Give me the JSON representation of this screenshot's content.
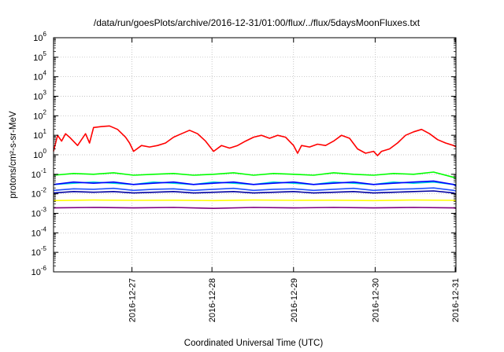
{
  "chart_data": {
    "type": "line",
    "title": "/data/run/goesPlots/archive/2016-12-31/01:00/flux/../flux/5daysMoonFluxes.txt",
    "xlabel": "Coordinated Universal Time (UTC)",
    "ylabel": "protons/cm²-s-sr-MeV",
    "y_scale": "log",
    "ylim": [
      1e-06,
      1000000.0
    ],
    "xlim_days": [
      0.0,
      5.03
    ],
    "grid": true,
    "legend": "none",
    "x_ticks": [
      {
        "day": 0.98,
        "label": "2016-12-27"
      },
      {
        "day": 1.98,
        "label": "2016-12-28"
      },
      {
        "day": 3.0,
        "label": "2016-12-29"
      },
      {
        "day": 4.02,
        "label": "2016-12-30"
      },
      {
        "day": 5.02,
        "label": "2016-12-31"
      }
    ],
    "y_ticks": [
      {
        "value": 1000000.0,
        "base": "10",
        "exp": "6"
      },
      {
        "value": 100000.0,
        "base": "10",
        "exp": "5"
      },
      {
        "value": 10000.0,
        "base": "10",
        "exp": "4"
      },
      {
        "value": 1000.0,
        "base": "10",
        "exp": "3"
      },
      {
        "value": 100.0,
        "base": "10",
        "exp": "2"
      },
      {
        "value": 10.0,
        "base": "10",
        "exp": "1"
      },
      {
        "value": 1.0,
        "base": "10",
        "exp": "0"
      },
      {
        "value": 0.1,
        "base": "10",
        "exp": "-1"
      },
      {
        "value": 0.01,
        "base": "10",
        "exp": "-2"
      },
      {
        "value": 0.001,
        "base": "10",
        "exp": "-3"
      },
      {
        "value": 0.0001,
        "base": "10",
        "exp": "-4"
      },
      {
        "value": 1e-05,
        "base": "10",
        "exp": "-5"
      },
      {
        "value": 1e-06,
        "base": "10",
        "exp": "-6"
      }
    ],
    "series": [
      {
        "color": "#ff0000",
        "x": [
          0.0,
          0.05,
          0.1,
          0.15,
          0.2,
          0.3,
          0.4,
          0.45,
          0.5,
          0.6,
          0.7,
          0.8,
          0.9,
          0.95,
          1.0,
          1.1,
          1.2,
          1.3,
          1.4,
          1.5,
          1.6,
          1.7,
          1.8,
          1.9,
          2.0,
          2.1,
          2.2,
          2.3,
          2.4,
          2.5,
          2.6,
          2.7,
          2.8,
          2.9,
          3.0,
          3.05,
          3.1,
          3.2,
          3.3,
          3.4,
          3.5,
          3.6,
          3.7,
          3.8,
          3.9,
          4.0,
          4.05,
          4.1,
          4.2,
          4.3,
          4.4,
          4.5,
          4.6,
          4.7,
          4.8,
          4.9,
          5.0,
          5.03
        ],
        "y": [
          1.5,
          10,
          5,
          12,
          8,
          3,
          12,
          4,
          25,
          28,
          30,
          20,
          8,
          4,
          1.5,
          3,
          2.5,
          3,
          4,
          8,
          12,
          18,
          12,
          5,
          1.5,
          3,
          2.2,
          3,
          5,
          8,
          10,
          7,
          10,
          8,
          3,
          1.2,
          3,
          2.5,
          3.5,
          3,
          5,
          10,
          7,
          2,
          1.2,
          1.5,
          0.9,
          1.5,
          2,
          4,
          10,
          15,
          20,
          12,
          6,
          4,
          3,
          2.5
        ]
      },
      {
        "color": "#00ff00",
        "x": [
          0.0,
          0.25,
          0.5,
          0.75,
          1.0,
          1.25,
          1.5,
          1.75,
          2.0,
          2.25,
          2.5,
          2.75,
          3.0,
          3.25,
          3.5,
          3.75,
          4.0,
          4.25,
          4.5,
          4.75,
          5.0,
          5.03
        ],
        "y": [
          0.09,
          0.11,
          0.1,
          0.12,
          0.09,
          0.1,
          0.11,
          0.09,
          0.1,
          0.12,
          0.09,
          0.11,
          0.1,
          0.09,
          0.12,
          0.1,
          0.09,
          0.11,
          0.1,
          0.13,
          0.07,
          0.06
        ]
      },
      {
        "color": "#00d8d8",
        "x": [
          0.0,
          0.25,
          0.5,
          0.75,
          1.0,
          1.25,
          1.5,
          1.75,
          2.0,
          2.25,
          2.5,
          2.75,
          3.0,
          3.25,
          3.5,
          3.75,
          4.0,
          4.25,
          4.5,
          4.75,
          5.0,
          5.03
        ],
        "y": [
          0.03,
          0.035,
          0.04,
          0.035,
          0.03,
          0.04,
          0.035,
          0.03,
          0.04,
          0.035,
          0.03,
          0.04,
          0.035,
          0.03,
          0.04,
          0.035,
          0.03,
          0.04,
          0.035,
          0.04,
          0.03,
          0.03
        ]
      },
      {
        "color": "#0000ff",
        "x": [
          0.0,
          0.25,
          0.5,
          0.75,
          1.0,
          1.25,
          1.5,
          1.75,
          2.0,
          2.25,
          2.5,
          2.75,
          3.0,
          3.25,
          3.5,
          3.75,
          4.0,
          4.25,
          4.5,
          4.75,
          5.0,
          5.03
        ],
        "y": [
          0.03,
          0.04,
          0.035,
          0.04,
          0.03,
          0.035,
          0.04,
          0.03,
          0.035,
          0.04,
          0.03,
          0.035,
          0.04,
          0.03,
          0.035,
          0.04,
          0.03,
          0.035,
          0.04,
          0.045,
          0.03,
          0.025
        ]
      },
      {
        "color": "#2050ff",
        "x": [
          0.0,
          0.25,
          0.5,
          0.75,
          1.0,
          1.25,
          1.5,
          1.75,
          2.0,
          2.25,
          2.5,
          2.75,
          3.0,
          3.25,
          3.5,
          3.75,
          4.0,
          4.25,
          4.5,
          4.75,
          5.0,
          5.03
        ],
        "y": [
          0.015,
          0.018,
          0.017,
          0.019,
          0.015,
          0.017,
          0.018,
          0.015,
          0.017,
          0.019,
          0.015,
          0.017,
          0.018,
          0.015,
          0.017,
          0.019,
          0.015,
          0.017,
          0.018,
          0.02,
          0.015,
          0.014
        ]
      },
      {
        "color": "#0000a0",
        "x": [
          0.0,
          0.25,
          0.5,
          0.75,
          1.0,
          1.25,
          1.5,
          1.75,
          2.0,
          2.25,
          2.5,
          2.75,
          3.0,
          3.25,
          3.5,
          3.75,
          4.0,
          4.25,
          4.5,
          4.75,
          5.0,
          5.03
        ],
        "y": [
          0.011,
          0.013,
          0.012,
          0.013,
          0.011,
          0.012,
          0.013,
          0.011,
          0.012,
          0.013,
          0.011,
          0.012,
          0.013,
          0.011,
          0.012,
          0.013,
          0.011,
          0.012,
          0.013,
          0.014,
          0.011,
          0.01
        ]
      },
      {
        "color": "#ffff00",
        "x": [
          0.0,
          0.5,
          1.0,
          1.5,
          2.0,
          2.5,
          3.0,
          3.5,
          4.0,
          4.5,
          5.0,
          5.03
        ],
        "y": [
          0.0045,
          0.0048,
          0.0046,
          0.0047,
          0.0045,
          0.0048,
          0.0046,
          0.0047,
          0.0045,
          0.0048,
          0.0046,
          0.0045
        ]
      },
      {
        "color": "#800080",
        "x": [
          0.0,
          0.5,
          1.0,
          1.5,
          2.0,
          2.5,
          3.0,
          3.5,
          4.0,
          4.5,
          5.0,
          5.03
        ],
        "y": [
          0.0019,
          0.002,
          0.0019,
          0.002,
          0.0018,
          0.002,
          0.0019,
          0.002,
          0.0019,
          0.002,
          0.0019,
          0.0018
        ]
      }
    ]
  }
}
